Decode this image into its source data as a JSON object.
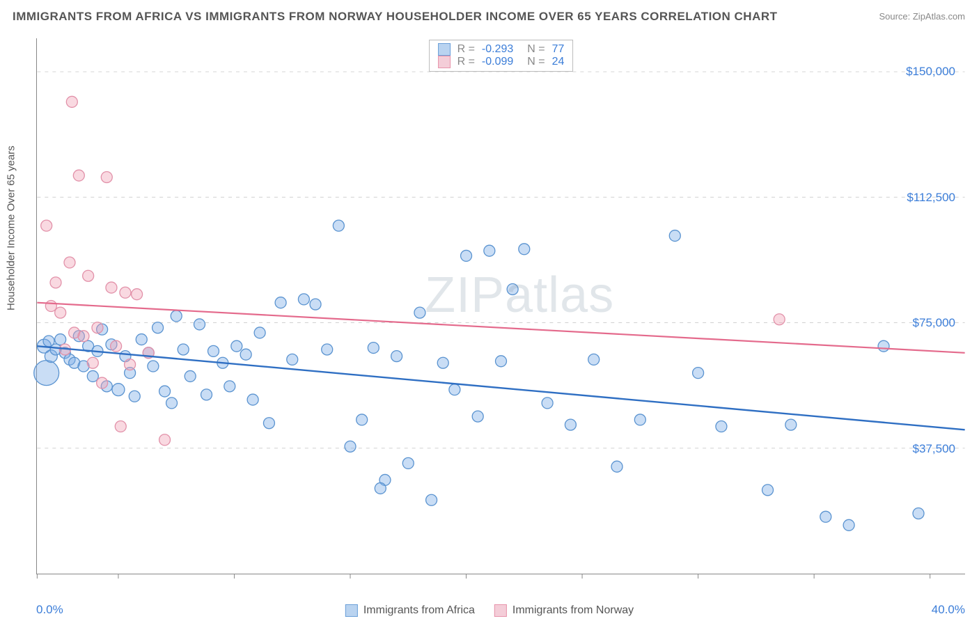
{
  "title": "IMMIGRANTS FROM AFRICA VS IMMIGRANTS FROM NORWAY HOUSEHOLDER INCOME OVER 65 YEARS CORRELATION CHART",
  "source": "Source: ZipAtlas.com",
  "watermark": "ZIPatlas",
  "ylabel": "Householder Income Over 65 years",
  "chart": {
    "type": "scatter",
    "xlim": [
      0,
      40
    ],
    "ylim": [
      0,
      160000
    ],
    "x_min_label": "0.0%",
    "x_max_label": "40.0%",
    "y_ticks": [
      37500,
      75000,
      112500,
      150000
    ],
    "y_tick_labels": [
      "$37,500",
      "$75,000",
      "$112,500",
      "$150,000"
    ],
    "x_tick_positions": [
      0,
      3.5,
      8.5,
      13.5,
      18.5,
      23.5,
      28.5,
      33.5,
      38.5
    ],
    "grid_color": "#d0d0d0",
    "background_color": "#ffffff",
    "series": [
      {
        "name": "Immigrants from Africa",
        "fill": "rgba(120,170,230,0.40)",
        "stroke": "#5a93d0",
        "line_color": "#2f6fc3",
        "line_width": 2.4,
        "swatch_fill": "#b9d3f0",
        "swatch_border": "#6a9fd8",
        "R": "-0.293",
        "N": "77",
        "trend": {
          "y_at_x0": 68000,
          "y_at_xmax": 43000
        },
        "points": [
          {
            "x": 0.3,
            "y": 68000,
            "r": 10
          },
          {
            "x": 0.4,
            "y": 60000,
            "r": 18
          },
          {
            "x": 0.5,
            "y": 69500,
            "r": 8
          },
          {
            "x": 0.6,
            "y": 65000,
            "r": 9
          },
          {
            "x": 0.8,
            "y": 67000,
            "r": 8
          },
          {
            "x": 1.0,
            "y": 70000,
            "r": 8
          },
          {
            "x": 1.2,
            "y": 66000,
            "r": 8
          },
          {
            "x": 1.4,
            "y": 64000,
            "r": 8
          },
          {
            "x": 1.6,
            "y": 63000,
            "r": 8
          },
          {
            "x": 1.8,
            "y": 71000,
            "r": 8
          },
          {
            "x": 2.0,
            "y": 62000,
            "r": 8
          },
          {
            "x": 2.2,
            "y": 68000,
            "r": 8
          },
          {
            "x": 2.4,
            "y": 59000,
            "r": 8
          },
          {
            "x": 2.6,
            "y": 66500,
            "r": 8
          },
          {
            "x": 2.8,
            "y": 73000,
            "r": 8
          },
          {
            "x": 3.0,
            "y": 56000,
            "r": 8
          },
          {
            "x": 3.2,
            "y": 68500,
            "r": 8
          },
          {
            "x": 3.5,
            "y": 55000,
            "r": 9
          },
          {
            "x": 3.8,
            "y": 65000,
            "r": 8
          },
          {
            "x": 4.0,
            "y": 60000,
            "r": 8
          },
          {
            "x": 4.2,
            "y": 53000,
            "r": 8
          },
          {
            "x": 4.5,
            "y": 70000,
            "r": 8
          },
          {
            "x": 4.8,
            "y": 66000,
            "r": 8
          },
          {
            "x": 5.0,
            "y": 62000,
            "r": 8
          },
          {
            "x": 5.2,
            "y": 73500,
            "r": 8
          },
          {
            "x": 5.5,
            "y": 54500,
            "r": 8
          },
          {
            "x": 5.8,
            "y": 51000,
            "r": 8
          },
          {
            "x": 6.0,
            "y": 77000,
            "r": 8
          },
          {
            "x": 6.3,
            "y": 67000,
            "r": 8
          },
          {
            "x": 6.6,
            "y": 59000,
            "r": 8
          },
          {
            "x": 7.0,
            "y": 74500,
            "r": 8
          },
          {
            "x": 7.3,
            "y": 53500,
            "r": 8
          },
          {
            "x": 7.6,
            "y": 66500,
            "r": 8
          },
          {
            "x": 8.0,
            "y": 63000,
            "r": 8
          },
          {
            "x": 8.3,
            "y": 56000,
            "r": 8
          },
          {
            "x": 8.6,
            "y": 68000,
            "r": 8
          },
          {
            "x": 9.0,
            "y": 65500,
            "r": 8
          },
          {
            "x": 9.3,
            "y": 52000,
            "r": 8
          },
          {
            "x": 9.6,
            "y": 72000,
            "r": 8
          },
          {
            "x": 10.0,
            "y": 45000,
            "r": 8
          },
          {
            "x": 10.5,
            "y": 81000,
            "r": 8
          },
          {
            "x": 11.0,
            "y": 64000,
            "r": 8
          },
          {
            "x": 11.5,
            "y": 82000,
            "r": 8
          },
          {
            "x": 12.0,
            "y": 80500,
            "r": 8
          },
          {
            "x": 12.5,
            "y": 67000,
            "r": 8
          },
          {
            "x": 13.0,
            "y": 104000,
            "r": 8
          },
          {
            "x": 13.5,
            "y": 38000,
            "r": 8
          },
          {
            "x": 14.0,
            "y": 46000,
            "r": 8
          },
          {
            "x": 14.5,
            "y": 67500,
            "r": 8
          },
          {
            "x": 15.0,
            "y": 28000,
            "r": 8
          },
          {
            "x": 15.5,
            "y": 65000,
            "r": 8
          },
          {
            "x": 16.0,
            "y": 33000,
            "r": 8
          },
          {
            "x": 16.5,
            "y": 78000,
            "r": 8
          },
          {
            "x": 17.0,
            "y": 22000,
            "r": 8
          },
          {
            "x": 17.5,
            "y": 63000,
            "r": 8
          },
          {
            "x": 18.0,
            "y": 55000,
            "r": 8
          },
          {
            "x": 18.5,
            "y": 95000,
            "r": 8
          },
          {
            "x": 19.0,
            "y": 47000,
            "r": 8
          },
          {
            "x": 19.5,
            "y": 96500,
            "r": 8
          },
          {
            "x": 20.0,
            "y": 63500,
            "r": 8
          },
          {
            "x": 20.5,
            "y": 85000,
            "r": 8
          },
          {
            "x": 21.0,
            "y": 97000,
            "r": 8
          },
          {
            "x": 22.0,
            "y": 51000,
            "r": 8
          },
          {
            "x": 23.0,
            "y": 44500,
            "r": 8
          },
          {
            "x": 24.0,
            "y": 64000,
            "r": 8
          },
          {
            "x": 25.0,
            "y": 32000,
            "r": 8
          },
          {
            "x": 26.0,
            "y": 46000,
            "r": 8
          },
          {
            "x": 27.5,
            "y": 101000,
            "r": 8
          },
          {
            "x": 28.5,
            "y": 60000,
            "r": 8
          },
          {
            "x": 29.5,
            "y": 44000,
            "r": 8
          },
          {
            "x": 31.5,
            "y": 25000,
            "r": 8
          },
          {
            "x": 32.5,
            "y": 44500,
            "r": 8
          },
          {
            "x": 34.0,
            "y": 17000,
            "r": 8
          },
          {
            "x": 35.0,
            "y": 14500,
            "r": 8
          },
          {
            "x": 36.5,
            "y": 68000,
            "r": 8
          },
          {
            "x": 38.0,
            "y": 18000,
            "r": 8
          },
          {
            "x": 14.8,
            "y": 25500,
            "r": 8
          }
        ]
      },
      {
        "name": "Immigrants from Norway",
        "fill": "rgba(240,160,180,0.40)",
        "stroke": "#e291a9",
        "line_color": "#e46a8c",
        "line_width": 2.2,
        "swatch_fill": "#f4cdd8",
        "swatch_border": "#e793ab",
        "R": "-0.099",
        "N": "24",
        "trend": {
          "y_at_x0": 81000,
          "y_at_xmax": 66000
        },
        "points": [
          {
            "x": 0.4,
            "y": 104000,
            "r": 8
          },
          {
            "x": 0.6,
            "y": 80000,
            "r": 8
          },
          {
            "x": 0.8,
            "y": 87000,
            "r": 8
          },
          {
            "x": 1.0,
            "y": 78000,
            "r": 8
          },
          {
            "x": 1.2,
            "y": 67000,
            "r": 8
          },
          {
            "x": 1.4,
            "y": 93000,
            "r": 8
          },
          {
            "x": 1.5,
            "y": 141000,
            "r": 8
          },
          {
            "x": 1.6,
            "y": 72000,
            "r": 8
          },
          {
            "x": 1.8,
            "y": 119000,
            "r": 8
          },
          {
            "x": 2.0,
            "y": 71000,
            "r": 8
          },
          {
            "x": 2.2,
            "y": 89000,
            "r": 8
          },
          {
            "x": 2.4,
            "y": 63000,
            "r": 8
          },
          {
            "x": 2.6,
            "y": 73500,
            "r": 8
          },
          {
            "x": 2.8,
            "y": 57000,
            "r": 8
          },
          {
            "x": 3.0,
            "y": 118500,
            "r": 8
          },
          {
            "x": 3.2,
            "y": 85500,
            "r": 8
          },
          {
            "x": 3.4,
            "y": 68000,
            "r": 8
          },
          {
            "x": 3.6,
            "y": 44000,
            "r": 8
          },
          {
            "x": 3.8,
            "y": 84000,
            "r": 8
          },
          {
            "x": 4.0,
            "y": 62500,
            "r": 8
          },
          {
            "x": 4.3,
            "y": 83500,
            "r": 8
          },
          {
            "x": 4.8,
            "y": 66000,
            "r": 8
          },
          {
            "x": 5.5,
            "y": 40000,
            "r": 8
          },
          {
            "x": 32.0,
            "y": 76000,
            "r": 8
          }
        ]
      }
    ]
  }
}
